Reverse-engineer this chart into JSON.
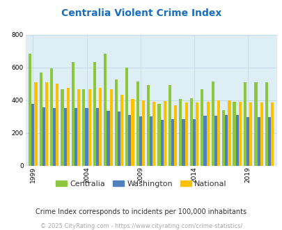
{
  "title": "Centralia Violent Crime Index",
  "title_color": "#1a6ebd",
  "bg_color": "#ddeef5",
  "years": [
    1999,
    2000,
    2001,
    2002,
    2003,
    2004,
    2005,
    2006,
    2007,
    2008,
    2009,
    2010,
    2011,
    2012,
    2013,
    2014,
    2015,
    2016,
    2017,
    2018,
    2019,
    2020,
    2021
  ],
  "centralia": [
    685,
    570,
    595,
    465,
    630,
    465,
    630,
    685,
    525,
    600,
    515,
    490,
    375,
    490,
    405,
    410,
    465,
    515,
    340,
    390,
    510,
    510,
    510
  ],
  "washington": [
    375,
    355,
    350,
    350,
    350,
    350,
    350,
    335,
    330,
    310,
    300,
    300,
    280,
    285,
    285,
    285,
    305,
    305,
    310,
    310,
    295,
    295,
    295
  ],
  "national": [
    510,
    510,
    500,
    475,
    465,
    465,
    475,
    465,
    430,
    405,
    400,
    390,
    395,
    370,
    385,
    385,
    390,
    400,
    400,
    390,
    385,
    385,
    385
  ],
  "centralia_color": "#8dc63f",
  "washington_color": "#4f81bd",
  "national_color": "#ffc000",
  "ylim": [
    0,
    800
  ],
  "yticks": [
    0,
    200,
    400,
    600,
    800
  ],
  "xtick_labels": [
    "1999",
    "2004",
    "2009",
    "2014",
    "2019"
  ],
  "xtick_year_positions": [
    1999,
    2004,
    2009,
    2014,
    2019
  ],
  "grid_color": "#c5dce8",
  "legend_labels": [
    "Centralia",
    "Washington",
    "National"
  ],
  "footnote1": "Crime Index corresponds to incidents per 100,000 inhabitants",
  "footnote2": "© 2025 CityRating.com - https://www.cityrating.com/crime-statistics/",
  "footnote1_color": "#333333",
  "footnote2_color": "#aaaaaa",
  "bar_width": 0.27
}
